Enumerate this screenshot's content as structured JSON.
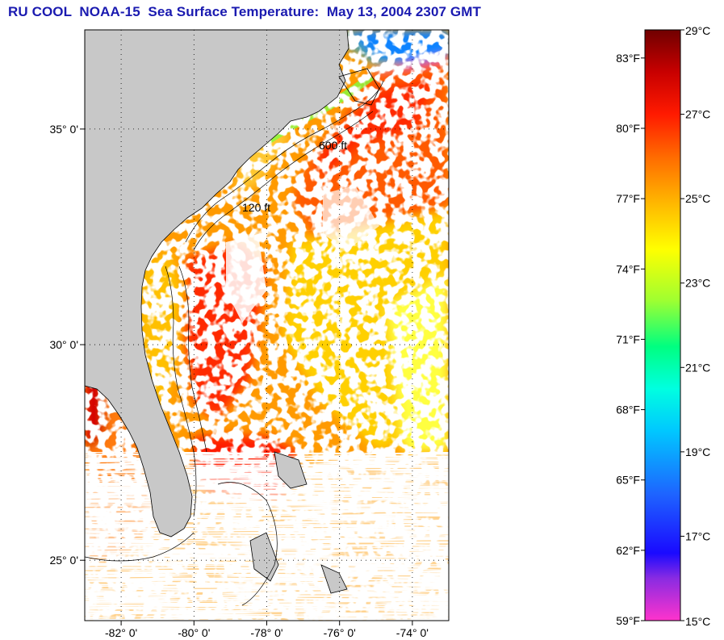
{
  "title": "RU COOL  NOAA-15  Sea Surface Temperature:  May 13, 2004 2307 GMT",
  "map": {
    "lon_range": [
      -83,
      -73
    ],
    "lat_range": [
      23.6,
      37.3
    ],
    "lat_ticks": [
      {
        "value": 35,
        "label": "35° 0'"
      },
      {
        "value": 30,
        "label": "30° 0'"
      },
      {
        "value": 25,
        "label": "25° 0'"
      }
    ],
    "lon_ticks": [
      {
        "value": -82,
        "label": "-82° 0'"
      },
      {
        "value": -80,
        "label": "-80° 0'"
      },
      {
        "value": -78,
        "label": "-78° 0'"
      },
      {
        "value": -76,
        "label": "-76° 0'"
      },
      {
        "value": -74,
        "label": "-74° 0'"
      }
    ],
    "grid": true,
    "land_color": "#c8c8c8",
    "cloud_color": "#ffffff",
    "isobath_labels": [
      "120 ft",
      "600 ft"
    ]
  },
  "colorbar": {
    "min_c": 15,
    "max_c": 29,
    "celsius_ticks": [
      {
        "value": 29,
        "label": "29°C"
      },
      {
        "value": 27,
        "label": "27°C"
      },
      {
        "value": 25,
        "label": "25°C"
      },
      {
        "value": 23,
        "label": "23°C"
      },
      {
        "value": 21,
        "label": "21°C"
      },
      {
        "value": 19,
        "label": "19°C"
      },
      {
        "value": 17,
        "label": "17°C"
      },
      {
        "value": 15,
        "label": "15°C"
      }
    ],
    "fahrenheit_ticks": [
      {
        "value": 83,
        "label": "83°F"
      },
      {
        "value": 80,
        "label": "80°F"
      },
      {
        "value": 77,
        "label": "77°F"
      },
      {
        "value": 74,
        "label": "74°F"
      },
      {
        "value": 71,
        "label": "71°F"
      },
      {
        "value": 68,
        "label": "68°F"
      },
      {
        "value": 65,
        "label": "65°F"
      },
      {
        "value": 62,
        "label": "62°F"
      },
      {
        "value": 59,
        "label": "59°F"
      }
    ],
    "stops": [
      {
        "t": 15,
        "color": "#ff33cc"
      },
      {
        "t": 16,
        "color": "#8a2be2"
      },
      {
        "t": 16.6,
        "color": "#1a0aff"
      },
      {
        "t": 18,
        "color": "#1e64ff"
      },
      {
        "t": 19.5,
        "color": "#00c8ff"
      },
      {
        "t": 20.5,
        "color": "#00ffe0"
      },
      {
        "t": 21.5,
        "color": "#00ff80"
      },
      {
        "t": 22.6,
        "color": "#a0ff30"
      },
      {
        "t": 23.8,
        "color": "#ffff00"
      },
      {
        "t": 25,
        "color": "#ffb000"
      },
      {
        "t": 26,
        "color": "#ff6a00"
      },
      {
        "t": 27,
        "color": "#ff1a00"
      },
      {
        "t": 28,
        "color": "#c80000"
      },
      {
        "t": 29,
        "color": "#700000"
      }
    ]
  }
}
